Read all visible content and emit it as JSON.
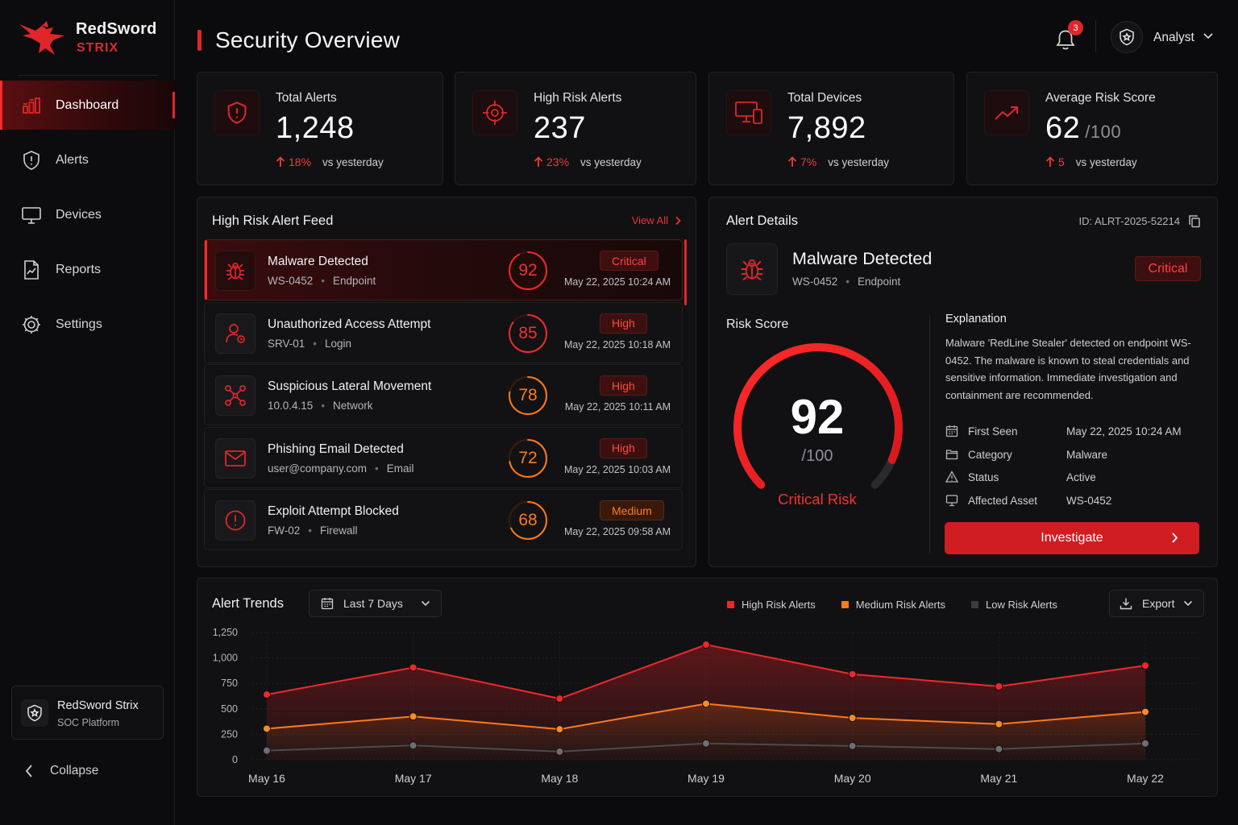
{
  "brand": {
    "name": "RedSword",
    "product": "STRIX"
  },
  "colors": {
    "accent": "#e0262a",
    "high": "#f0282b",
    "medium": "#ff7a1a",
    "low": "#6e6e73",
    "background": "#0b0b0d"
  },
  "nav": [
    {
      "label": "Dashboard",
      "icon": "dashboard-icon",
      "active": true
    },
    {
      "label": "Alerts",
      "icon": "shield-alert-icon",
      "active": false
    },
    {
      "label": "Devices",
      "icon": "monitor-icon",
      "active": false
    },
    {
      "label": "Reports",
      "icon": "report-icon",
      "active": false
    },
    {
      "label": "Settings",
      "icon": "gear-icon",
      "active": false
    }
  ],
  "platform": {
    "title": "RedSword Strix",
    "subtitle": "SOC Platform"
  },
  "collapse_label": "Collapse",
  "header": {
    "title": "Security Overview",
    "notifications": "3",
    "user": "Analyst"
  },
  "kpis": [
    {
      "label": "Total Alerts",
      "value": "1,248",
      "unit": "",
      "change": "18%",
      "compare": "vs yesterday",
      "icon": "shield-alert-icon"
    },
    {
      "label": "High Risk Alerts",
      "value": "237",
      "unit": "",
      "change": "23%",
      "compare": "vs yesterday",
      "icon": "target-icon"
    },
    {
      "label": "Total Devices",
      "value": "7,892",
      "unit": "",
      "change": "7%",
      "compare": "vs yesterday",
      "icon": "devices-icon"
    },
    {
      "label": "Average Risk Score",
      "value": "62",
      "unit": "/100",
      "change": "5",
      "compare": "vs yesterday",
      "icon": "trend-up-icon"
    }
  ],
  "feed": {
    "title": "High Risk Alert Feed",
    "view_all": "View All",
    "items": [
      {
        "name": "Malware Detected",
        "asset": "WS-0452",
        "type": "Endpoint",
        "score": 92,
        "severity": "Critical",
        "time": "May 22, 2025  10:24 AM",
        "icon": "bug-icon",
        "selected": true
      },
      {
        "name": "Unauthorized Access Attempt",
        "asset": "SRV-01",
        "type": "Login",
        "score": 85,
        "severity": "High",
        "time": "May 22, 2025  10:18 AM",
        "icon": "user-lock-icon",
        "selected": false
      },
      {
        "name": "Suspicious Lateral Movement",
        "asset": "10.0.4.15",
        "type": "Network",
        "score": 78,
        "severity": "High",
        "time": "May 22, 2025  10:11 AM",
        "icon": "network-icon",
        "selected": false
      },
      {
        "name": "Phishing Email Detected",
        "asset": "user@company.com",
        "type": "Email",
        "score": 72,
        "severity": "High",
        "time": "May 22, 2025  10:03 AM",
        "icon": "mail-icon",
        "selected": false
      },
      {
        "name": "Exploit Attempt Blocked",
        "asset": "FW-02",
        "type": "Firewall",
        "score": 68,
        "severity": "Medium",
        "time": "May 22, 2025  09:58 AM",
        "icon": "alert-circle-icon",
        "selected": false
      }
    ]
  },
  "details": {
    "title": "Alert Details",
    "id": "ID: ALRT-2025-52214",
    "name": "Malware Detected",
    "asset": "WS-0452",
    "type": "Endpoint",
    "severity": "Critical",
    "risk_label": "Risk Score",
    "score": "92",
    "score_max": "/100",
    "score_fraction": 0.92,
    "rating": "Critical Risk",
    "explanation_title": "Explanation",
    "explanation": "Malware 'RedLine Stealer' detected on endpoint WS-0452. The malware is known to steal credentials and sensitive information. Immediate investigation and containment are recommended.",
    "facts": [
      {
        "key": "First Seen",
        "value": "May 22, 2025  10:24 AM",
        "icon": "calendar-icon"
      },
      {
        "key": "Category",
        "value": "Malware",
        "icon": "folder-icon"
      },
      {
        "key": "Status",
        "value": "Active",
        "icon": "warning-icon"
      },
      {
        "key": "Affected Asset",
        "value": "WS-0452",
        "icon": "monitor-icon"
      }
    ],
    "action": "Investigate"
  },
  "trends": {
    "title": "Alert Trends",
    "range": "Last 7 Days",
    "export": "Export"
  },
  "chart_data": {
    "type": "area",
    "x": [
      "May 16",
      "May 17",
      "May 18",
      "May 19",
      "May 20",
      "May 21",
      "May 22"
    ],
    "series": [
      {
        "name": "High Risk Alerts",
        "values": [
          640,
          905,
          600,
          1130,
          840,
          720,
          925
        ]
      },
      {
        "name": "Medium Risk Alerts",
        "values": [
          305,
          425,
          300,
          550,
          410,
          350,
          470
        ]
      },
      {
        "name": "Low Risk Alerts",
        "values": [
          90,
          140,
          80,
          160,
          135,
          105,
          160
        ]
      }
    ],
    "yticks": [
      "1,250",
      "1,000",
      "750",
      "500",
      "250",
      "0"
    ],
    "ylim": [
      0,
      1250
    ],
    "grid": true,
    "legend": "top-right"
  }
}
